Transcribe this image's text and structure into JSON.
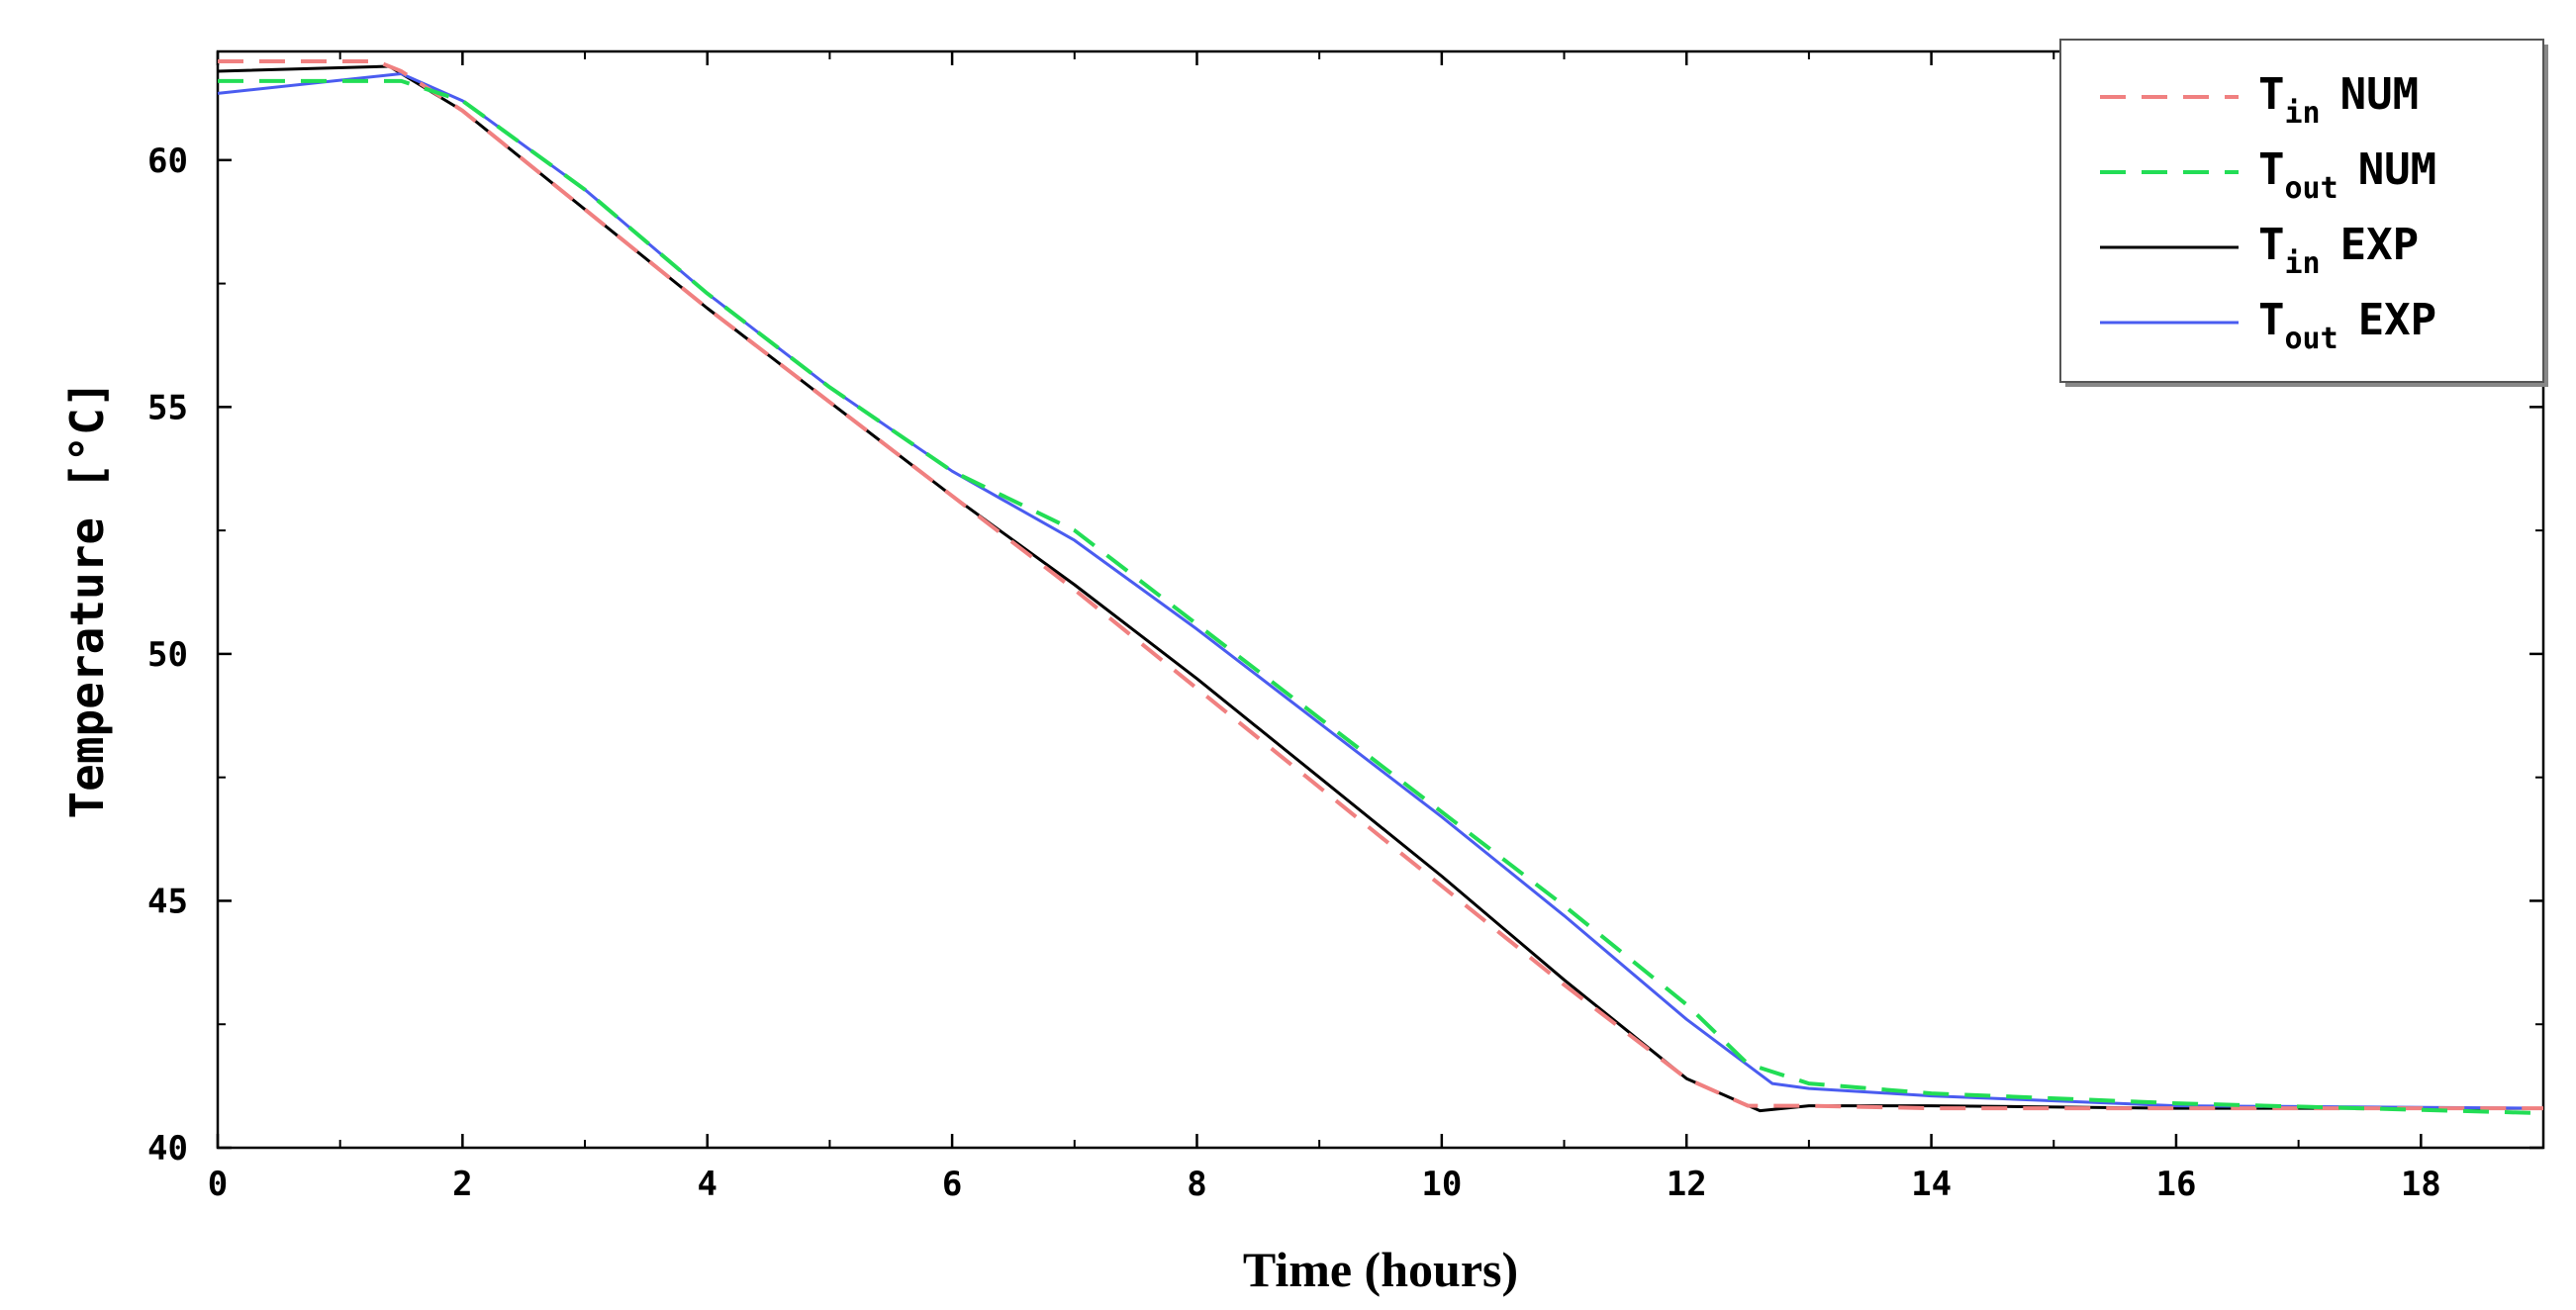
{
  "chart_data": {
    "type": "line",
    "xlabel": "Time (hours)",
    "ylabel": "Temperature [°C]",
    "xlim": [
      0,
      19
    ],
    "ylim": [
      40,
      62.2
    ],
    "xticks": [
      0,
      2,
      4,
      6,
      8,
      10,
      12,
      14,
      16,
      18
    ],
    "yticks": [
      40,
      45,
      50,
      55,
      60
    ],
    "grid": false,
    "legend_position": "top-right",
    "series": [
      {
        "name": "T_in NUM",
        "label_main": "T",
        "label_sub": "in",
        "label_tail": "NUM",
        "color": "#f08080",
        "dash": "dashed",
        "x": [
          0,
          1.3,
          1.5,
          2,
          3,
          4,
          5,
          6,
          7,
          8,
          9,
          10,
          11,
          12,
          12.5,
          13,
          14,
          16,
          19
        ],
        "y": [
          62.0,
          62.0,
          61.8,
          61.0,
          59.0,
          57.0,
          55.1,
          53.2,
          51.3,
          49.3,
          47.3,
          45.3,
          43.3,
          41.4,
          40.85,
          40.85,
          40.8,
          40.8,
          40.8
        ]
      },
      {
        "name": "T_out NUM",
        "label_main": "T",
        "label_sub": "out",
        "label_tail": "NUM",
        "color": "#22dd55",
        "dash": "dashed",
        "x": [
          0,
          1.5,
          2,
          3,
          4,
          5,
          6,
          7,
          8,
          9,
          10,
          11,
          12,
          12.5,
          13,
          14,
          16,
          19
        ],
        "y": [
          61.6,
          61.6,
          61.2,
          59.4,
          57.3,
          55.4,
          53.7,
          52.5,
          50.6,
          48.7,
          46.8,
          44.9,
          42.9,
          41.7,
          41.3,
          41.1,
          40.9,
          40.7
        ]
      },
      {
        "name": "T_in EXP",
        "label_main": "T",
        "label_sub": "in",
        "label_tail": "EXP",
        "color": "#000000",
        "dash": "solid",
        "x": [
          0,
          1.4,
          2,
          3,
          4,
          5,
          6,
          7,
          8,
          9,
          10,
          11,
          12,
          12.6,
          13,
          14,
          16,
          19
        ],
        "y": [
          61.8,
          61.9,
          61.0,
          59.0,
          57.0,
          55.1,
          53.2,
          51.4,
          49.5,
          47.5,
          45.5,
          43.4,
          41.4,
          40.75,
          40.85,
          40.85,
          40.8,
          40.8
        ]
      },
      {
        "name": "T_out EXP",
        "label_main": "T",
        "label_sub": "out",
        "label_tail": "EXP",
        "color": "#4a5cf0",
        "dash": "solid",
        "x": [
          0,
          1.5,
          2,
          3,
          4,
          5,
          6,
          7,
          8,
          9,
          10,
          11,
          12,
          12.7,
          13,
          14,
          16,
          19
        ],
        "y": [
          61.35,
          61.75,
          61.2,
          59.4,
          57.3,
          55.4,
          53.7,
          52.3,
          50.5,
          48.6,
          46.7,
          44.7,
          42.6,
          41.3,
          41.2,
          41.05,
          40.85,
          40.8
        ]
      }
    ]
  }
}
